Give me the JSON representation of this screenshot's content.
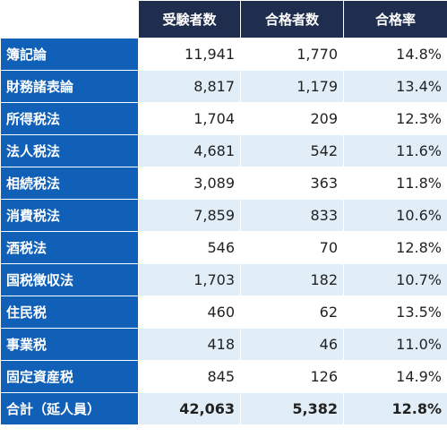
{
  "header": {
    "examinees": "受験者数",
    "passers": "合格者数",
    "rate": "合格率"
  },
  "rows": [
    {
      "subject": "簿記論",
      "examinees": "11,941",
      "passers": "1,770",
      "rate": "14.8%"
    },
    {
      "subject": "財務諸表論",
      "examinees": "8,817",
      "passers": "1,179",
      "rate": "13.4%"
    },
    {
      "subject": "所得税法",
      "examinees": "1,704",
      "passers": "209",
      "rate": "12.3%"
    },
    {
      "subject": "法人税法",
      "examinees": "4,681",
      "passers": "542",
      "rate": "11.6%"
    },
    {
      "subject": "相続税法",
      "examinees": "3,089",
      "passers": "363",
      "rate": "11.8%"
    },
    {
      "subject": "消費税法",
      "examinees": "7,859",
      "passers": "833",
      "rate": "10.6%"
    },
    {
      "subject": "酒税法",
      "examinees": "546",
      "passers": "70",
      "rate": "12.8%"
    },
    {
      "subject": "国税徴収法",
      "examinees": "1,703",
      "passers": "182",
      "rate": "10.7%"
    },
    {
      "subject": "住民税",
      "examinees": "460",
      "passers": "62",
      "rate": "13.5%"
    },
    {
      "subject": "事業税",
      "examinees": "418",
      "passers": "46",
      "rate": "11.0%"
    },
    {
      "subject": "固定資産税",
      "examinees": "845",
      "passers": "126",
      "rate": "14.9%"
    }
  ],
  "total": {
    "label": "合計（延人員）",
    "examinees": "42,063",
    "passers": "5,382",
    "rate": "12.8%"
  },
  "colors": {
    "header_bg": "#1f2d4e",
    "row_label_bg": "#1060b8",
    "stripe_bg": "#e1eef7"
  }
}
